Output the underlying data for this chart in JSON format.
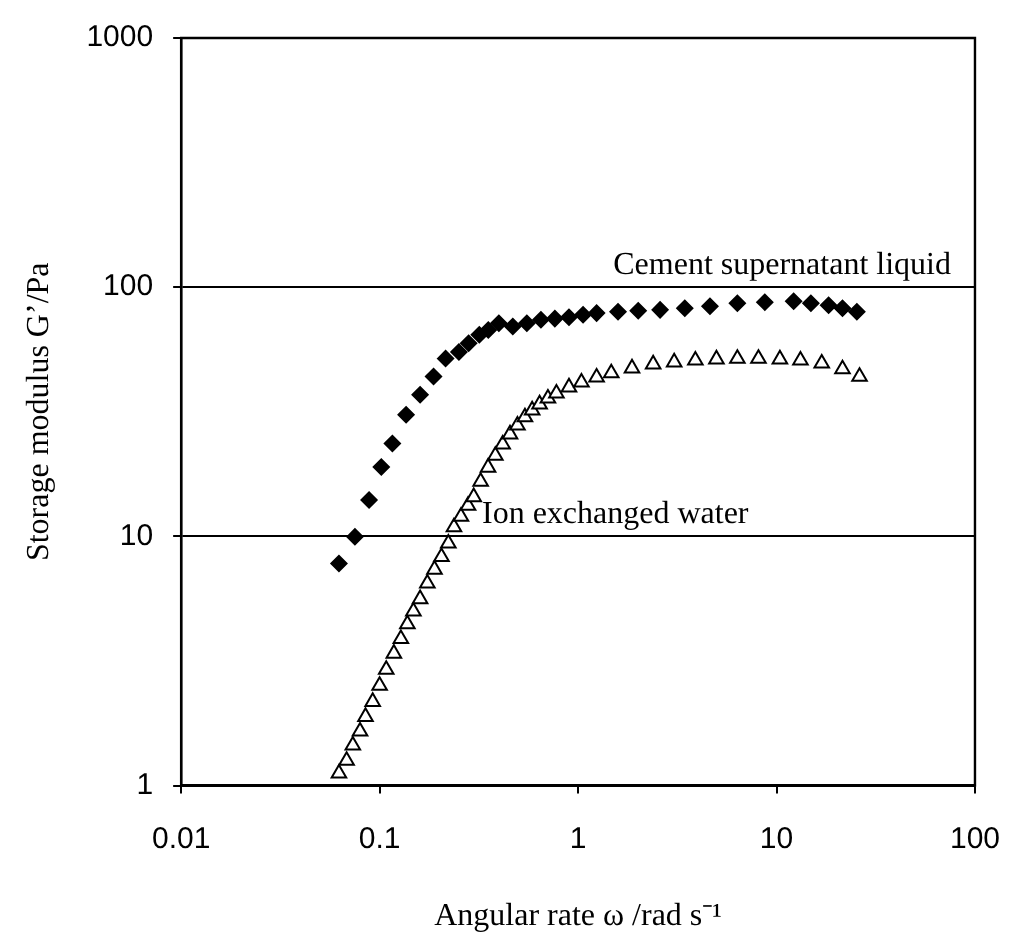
{
  "chart_data": {
    "type": "scatter",
    "xlabel": "Angular rate ω /rad s⁻¹",
    "ylabel": "Storage modulus G’/Pa",
    "log": "xy",
    "grid": "y",
    "legend": false,
    "xlim": [
      0.01,
      100
    ],
    "xticks": [
      0.01,
      0.1,
      1,
      10,
      100
    ],
    "ylim": [
      1,
      1000
    ],
    "yticks": [
      1,
      10,
      100,
      1000
    ],
    "series": [
      {
        "name": "Cement supernatant liquid",
        "color": "#000000",
        "marker": "diamond",
        "x": [
          0.0624,
          0.0751,
          0.0885,
          0.102,
          0.116,
          0.136,
          0.16,
          0.187,
          0.215,
          0.251,
          0.281,
          0.318,
          0.353,
          0.399,
          0.469,
          0.552,
          0.65,
          0.764,
          0.9,
          1.06,
          1.24,
          1.59,
          2.01,
          2.59,
          3.45,
          4.62,
          6.35,
          8.73,
          12.2,
          14.9,
          18.3,
          21.5,
          25.4
        ],
        "values": [
          7.79,
          9.96,
          14.0,
          19.0,
          23.6,
          30.8,
          37.0,
          43.8,
          51.7,
          55.0,
          59.6,
          64.5,
          67.4,
          71.7,
          69.5,
          71.7,
          74.0,
          74.8,
          75.8,
          77.6,
          78.7,
          79.7,
          80.4,
          81.1,
          82.4,
          83.9,
          86.2,
          87.1,
          87.9,
          86.2,
          84.7,
          82.4,
          79.7
        ]
      },
      {
        "name": "Ion exchanged water",
        "color": "#000000",
        "marker": "triangle",
        "x": [
          0.0624,
          0.0682,
          0.0733,
          0.0797,
          0.0849,
          0.0923,
          0.1,
          0.108,
          0.118,
          0.128,
          0.138,
          0.148,
          0.16,
          0.174,
          0.189,
          0.205,
          0.222,
          0.237,
          0.257,
          0.279,
          0.298,
          0.323,
          0.352,
          0.383,
          0.417,
          0.454,
          0.495,
          0.54,
          0.587,
          0.64,
          0.705,
          0.778,
          0.9,
          1.04,
          1.24,
          1.47,
          1.87,
          2.39,
          3.05,
          3.9,
          4.98,
          6.35,
          8.11,
          10.4,
          13.2,
          16.9,
          21.5,
          26.2
        ],
        "values": [
          1.12,
          1.26,
          1.45,
          1.65,
          1.89,
          2.17,
          2.52,
          2.92,
          3.39,
          3.88,
          4.45,
          5.0,
          5.61,
          6.48,
          7.37,
          8.28,
          9.38,
          10.9,
          12.0,
          13.3,
          14.4,
          16.6,
          18.9,
          21.1,
          23.4,
          25.7,
          27.9,
          30.1,
          32.1,
          33.9,
          35.8,
          37.5,
          39.7,
          41.5,
          43.5,
          45.2,
          47.3,
          49.1,
          50.0,
          50.9,
          51.4,
          51.7,
          51.7,
          51.4,
          50.9,
          49.5,
          46.9,
          43.8
        ]
      }
    ]
  }
}
